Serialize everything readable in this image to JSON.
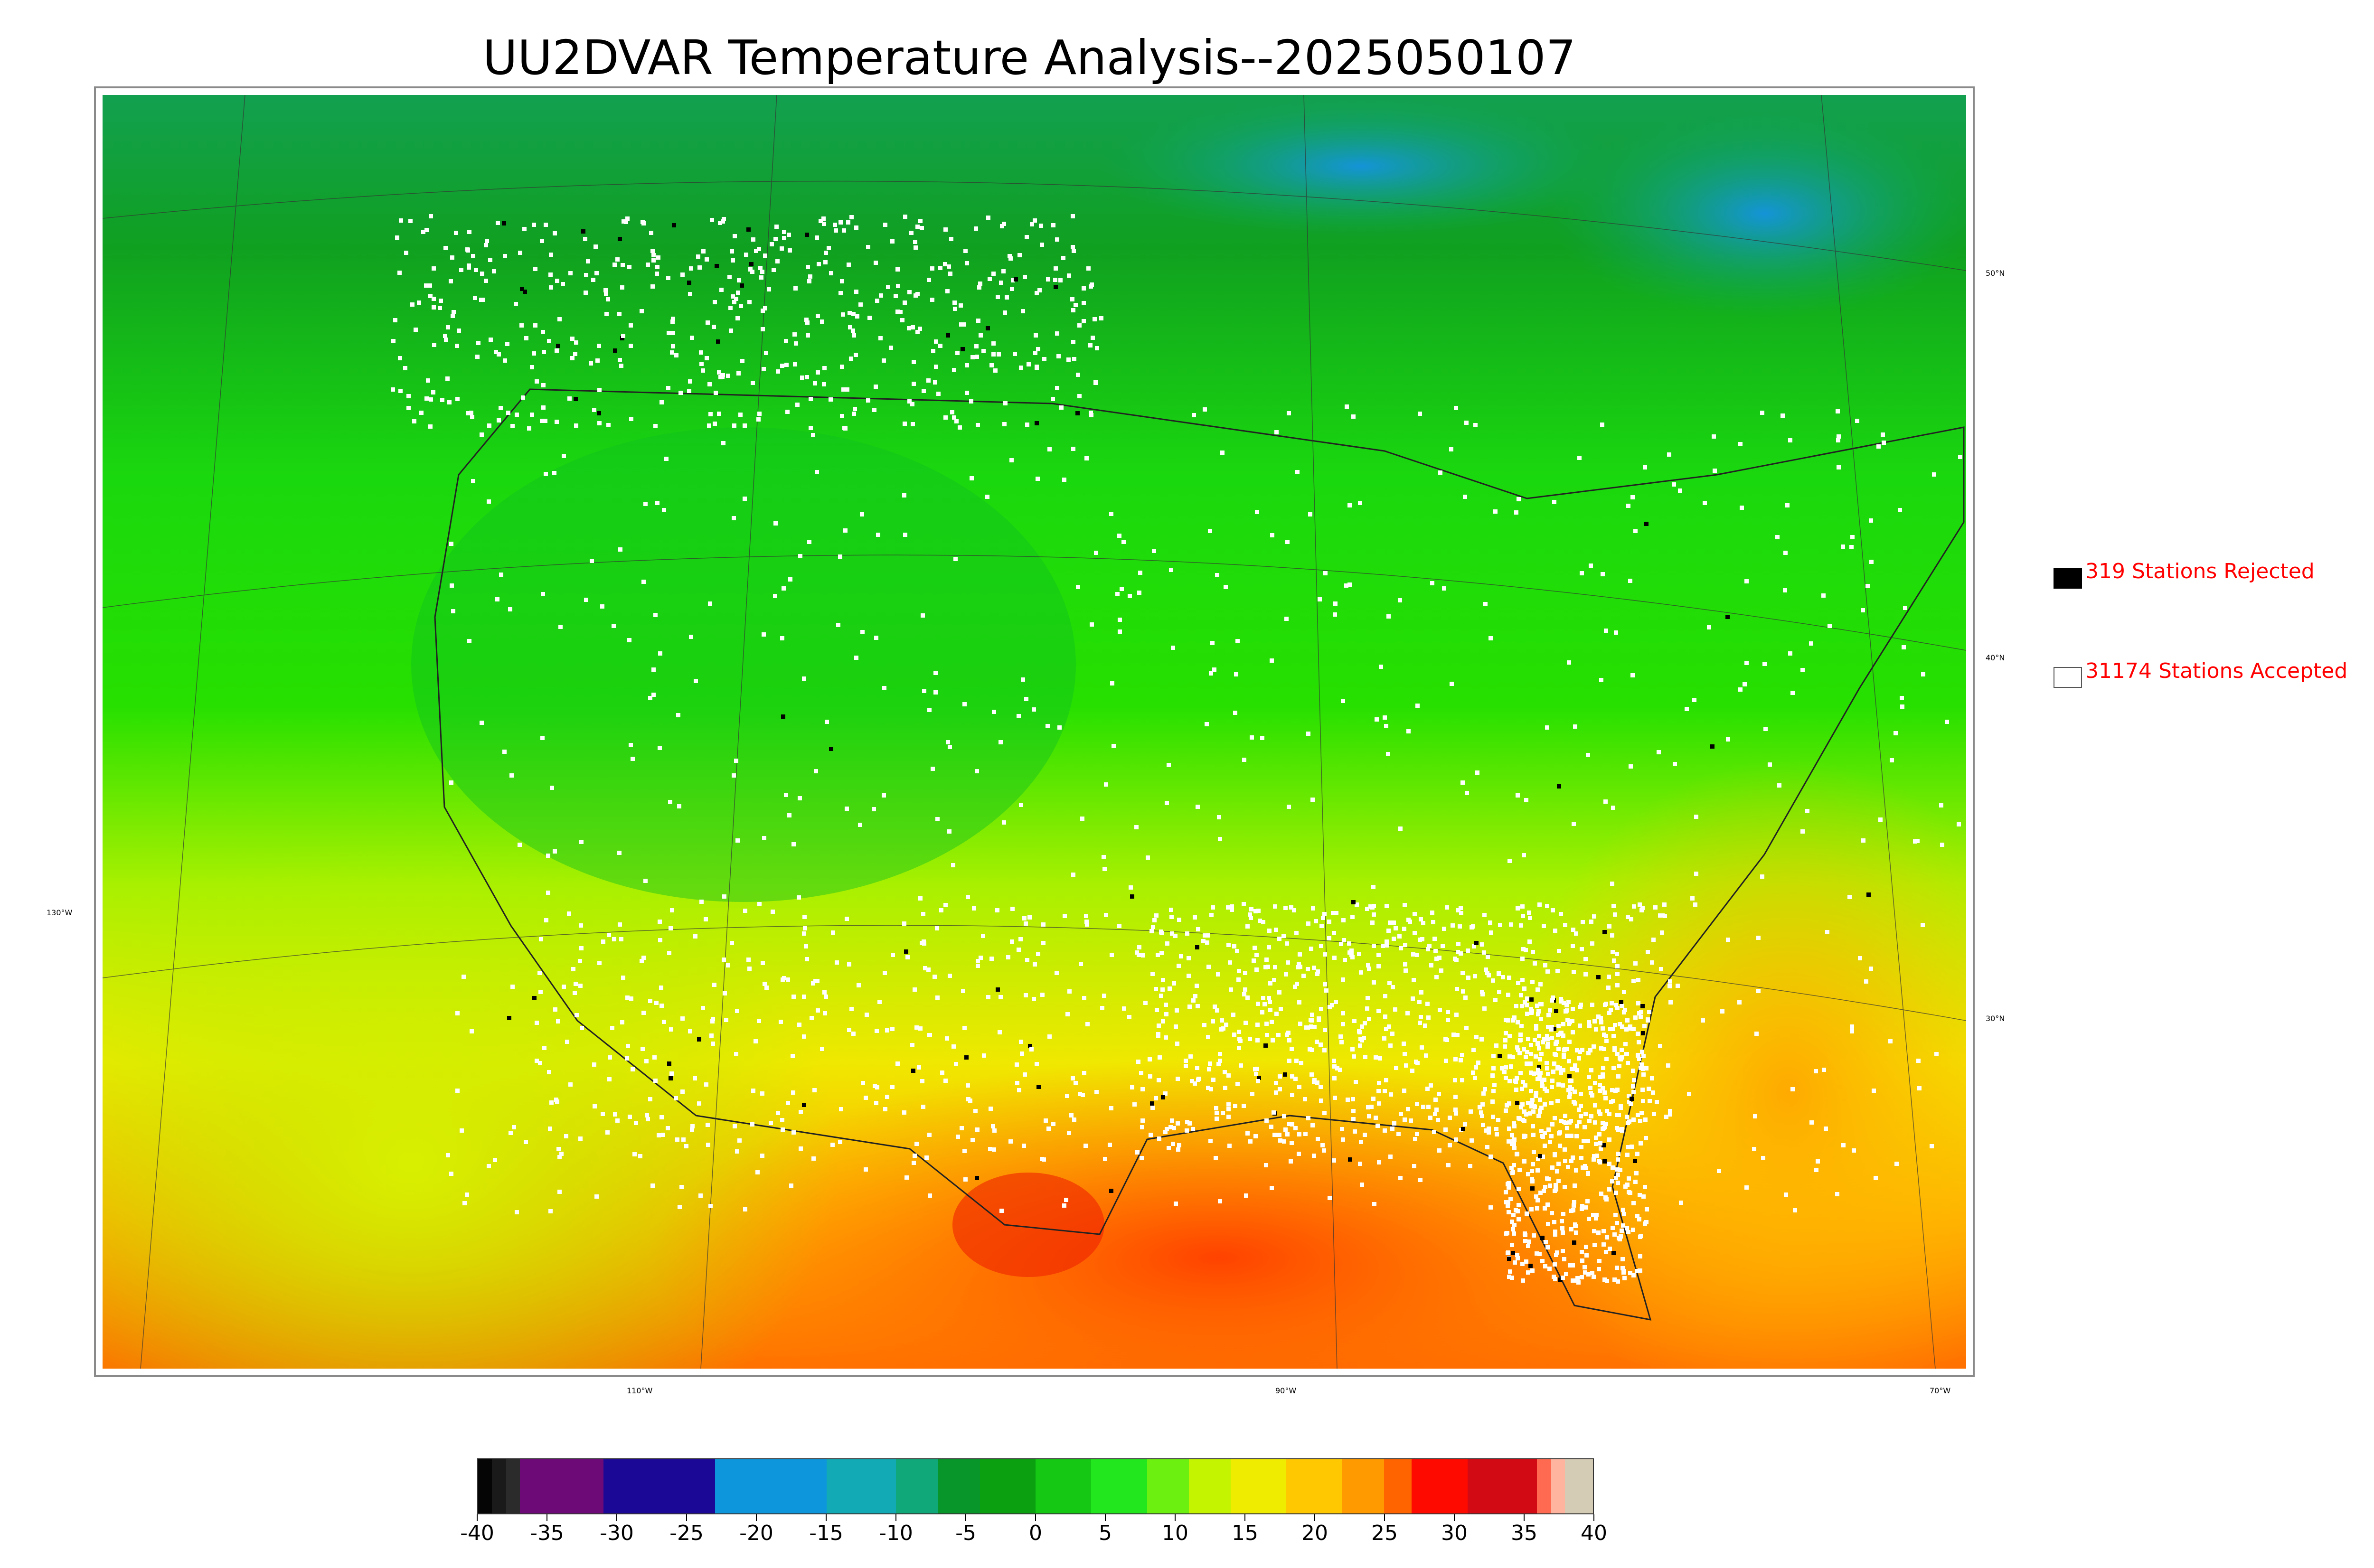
{
  "title": "UU2DVAR Temperature Analysis--2025050107",
  "map": {
    "background_colors": {
      "cold_north": "#0a9a2a",
      "green": "#27e000",
      "yellow_green": "#b8f000",
      "yellow": "#f4e800",
      "orange": "#ffa500",
      "deep_orange": "#ff5a00",
      "red": "#ee1200",
      "cyan_blue": "#12a0c8"
    },
    "lat_labels": [
      "50°N",
      "40°N",
      "30°N"
    ],
    "lon_labels": [
      "130°W",
      "110°W",
      "90°W",
      "70°W"
    ],
    "station_colors": {
      "accepted": "#ffffff",
      "rejected": "#000000"
    }
  },
  "legend": {
    "rejected": {
      "text": "319 Stations Rejected",
      "color": "#000000"
    },
    "accepted": {
      "text": "31174 Stations Accepted",
      "color": "#ffffff"
    }
  },
  "colorbar": {
    "ticks": [
      "-40",
      "-35",
      "-30",
      "-25",
      "-20",
      "-15",
      "-10",
      "-5",
      "0",
      "5",
      "10",
      "15",
      "20",
      "25",
      "30",
      "35",
      "40"
    ],
    "segments": [
      {
        "from": -40,
        "to": -39,
        "color": "#050505"
      },
      {
        "from": -39,
        "to": -38,
        "color": "#1a1a1a"
      },
      {
        "from": -38,
        "to": -37,
        "color": "#2b2b2b"
      },
      {
        "from": -37,
        "to": -31,
        "color": "#6e0a78"
      },
      {
        "from": -31,
        "to": -23,
        "color": "#1c0896"
      },
      {
        "from": -23,
        "to": -15,
        "color": "#0d96dc"
      },
      {
        "from": -15,
        "to": -10,
        "color": "#12aab4"
      },
      {
        "from": -10,
        "to": -7,
        "color": "#10a878"
      },
      {
        "from": -7,
        "to": -4,
        "color": "#08962a"
      },
      {
        "from": -4,
        "to": 0,
        "color": "#0aa010"
      },
      {
        "from": 0,
        "to": 4,
        "color": "#14c814"
      },
      {
        "from": 4,
        "to": 8,
        "color": "#22e61e"
      },
      {
        "from": 8,
        "to": 11,
        "color": "#6cf010"
      },
      {
        "from": 11,
        "to": 14,
        "color": "#c4f400"
      },
      {
        "from": 14,
        "to": 18,
        "color": "#f0ec00"
      },
      {
        "from": 18,
        "to": 22,
        "color": "#ffc800"
      },
      {
        "from": 22,
        "to": 25,
        "color": "#ff9a00"
      },
      {
        "from": 25,
        "to": 27,
        "color": "#ff6400"
      },
      {
        "from": 27,
        "to": 31,
        "color": "#ff0a00"
      },
      {
        "from": 31,
        "to": 36,
        "color": "#d20a14"
      },
      {
        "from": 36,
        "to": 37,
        "color": "#ff6a50"
      },
      {
        "from": 37,
        "to": 38,
        "color": "#ffb4a0"
      },
      {
        "from": 38,
        "to": 40,
        "color": "#d4ccb4"
      }
    ]
  }
}
